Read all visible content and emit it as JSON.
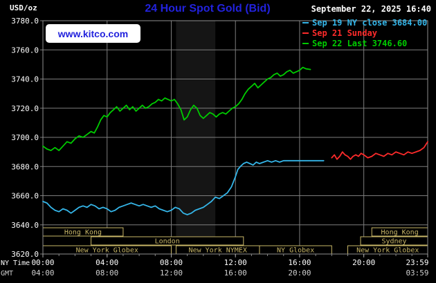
{
  "header": {
    "unit_label": "USD/oz",
    "title": "24 Hour Spot Gold (Bid)",
    "title_color": "#2222dd",
    "datetime": "September 22, 2025 16:40"
  },
  "watermark": {
    "text": "www.kitco.com",
    "color": "#2222dd"
  },
  "legend": {
    "items": [
      {
        "label": "Sep 19 NY close 3684.00",
        "color": "#35b6e9"
      },
      {
        "label": "Sep 21 Sunday",
        "color": "#ff2b2b"
      },
      {
        "label": "Sep 22 Last 3746.60",
        "color": "#00cc00"
      }
    ]
  },
  "chart_data": {
    "type": "line",
    "title": "24 Hour Spot Gold (Bid)",
    "xlabel": "NY Time (hours)",
    "ylabel": "USD/oz",
    "xlim": [
      0,
      23.983
    ],
    "ylim": [
      3620,
      3780
    ],
    "grid": true,
    "grid_color": "#7e7e7e",
    "border_color": "#909090",
    "axis_text_color": "#ffffff",
    "gmt_text_color": "#d0d0d0",
    "x_axis_rows": {
      "ny": "NY Time",
      "gmt": "GMT"
    },
    "y_ticks": [
      {
        "v": 3780,
        "label": "3780.0"
      },
      {
        "v": 3760,
        "label": "3760.0"
      },
      {
        "v": 3740,
        "label": "3740.0"
      },
      {
        "v": 3720,
        "label": "3720.0"
      },
      {
        "v": 3700,
        "label": "3700.0"
      },
      {
        "v": 3680,
        "label": "3680.0"
      },
      {
        "v": 3660,
        "label": "3660.0"
      },
      {
        "v": 3640,
        "label": "3640.0"
      },
      {
        "v": 3620,
        "label": "3620.0"
      }
    ],
    "x_ticks": [
      {
        "t": 0,
        "ny": "00:00",
        "gmt": "04:00"
      },
      {
        "t": 4,
        "ny": "04:00",
        "gmt": "08:00"
      },
      {
        "t": 8,
        "ny": "08:00",
        "gmt": "12:00"
      },
      {
        "t": 12,
        "ny": "12:00",
        "gmt": "16:00"
      },
      {
        "t": 16,
        "ny": "16:00",
        "gmt": "20:00"
      },
      {
        "t": 20,
        "ny": "20:00",
        "gmt": null
      },
      {
        "t": 23.983,
        "ny": "23:59",
        "gmt": "03:59"
      }
    ],
    "shaded_band": {
      "from_hour": 8.3,
      "to_hour": 10.75,
      "color": "#151515"
    },
    "session_color": "#c9b768",
    "session_rows": [
      [
        {
          "label": "Hong Kong",
          "from": 0,
          "to": 5.0
        },
        {
          "label": "Hong Kong",
          "from": 20.5,
          "to": 23.983
        }
      ],
      [
        {
          "label": "London",
          "from": 3.0,
          "to": 12.5
        },
        {
          "label": "Sydney",
          "from": 19.8,
          "to": 23.983
        }
      ],
      [
        {
          "label": "New York Globex",
          "from": 0,
          "to": 8.0
        },
        {
          "label": "New York NYMEX",
          "from": 8.3,
          "to": 13.5
        },
        {
          "label": "NY Globex",
          "from": 13.5,
          "to": 18.0
        },
        {
          "label": "New York Globex",
          "from": 19.0,
          "to": 23.983
        }
      ]
    ],
    "series": [
      {
        "id": "sep19",
        "name": "Sep 19 NY close 3684.00",
        "color": "#35b6e9",
        "points": [
          [
            0,
            3656
          ],
          [
            0.25,
            3655
          ],
          [
            0.5,
            3652
          ],
          [
            0.75,
            3650
          ],
          [
            1,
            3649
          ],
          [
            1.25,
            3651
          ],
          [
            1.5,
            3650
          ],
          [
            1.75,
            3648
          ],
          [
            2,
            3650
          ],
          [
            2.25,
            3652
          ],
          [
            2.5,
            3653
          ],
          [
            2.75,
            3652
          ],
          [
            3,
            3654
          ],
          [
            3.25,
            3653
          ],
          [
            3.5,
            3651
          ],
          [
            3.75,
            3652
          ],
          [
            4,
            3651
          ],
          [
            4.25,
            3649
          ],
          [
            4.5,
            3650
          ],
          [
            4.75,
            3652
          ],
          [
            5,
            3653
          ],
          [
            5.25,
            3654
          ],
          [
            5.5,
            3655
          ],
          [
            5.75,
            3654
          ],
          [
            6,
            3653
          ],
          [
            6.25,
            3654
          ],
          [
            6.5,
            3653
          ],
          [
            6.75,
            3652
          ],
          [
            7,
            3653
          ],
          [
            7.25,
            3651
          ],
          [
            7.5,
            3650
          ],
          [
            7.75,
            3649
          ],
          [
            8,
            3650
          ],
          [
            8.25,
            3652
          ],
          [
            8.5,
            3651
          ],
          [
            8.75,
            3648
          ],
          [
            9,
            3647
          ],
          [
            9.25,
            3648
          ],
          [
            9.5,
            3650
          ],
          [
            9.75,
            3651
          ],
          [
            10,
            3652
          ],
          [
            10.25,
            3654
          ],
          [
            10.5,
            3656
          ],
          [
            10.75,
            3659
          ],
          [
            11,
            3658
          ],
          [
            11.25,
            3660
          ],
          [
            11.5,
            3662
          ],
          [
            11.75,
            3666
          ],
          [
            12,
            3673
          ],
          [
            12.15,
            3678
          ],
          [
            12.3,
            3680
          ],
          [
            12.5,
            3682
          ],
          [
            12.7,
            3683
          ],
          [
            12.9,
            3682
          ],
          [
            13.1,
            3681
          ],
          [
            13.3,
            3683
          ],
          [
            13.5,
            3682
          ],
          [
            13.75,
            3683
          ],
          [
            14,
            3684
          ],
          [
            14.25,
            3683
          ],
          [
            14.5,
            3684
          ],
          [
            14.75,
            3683
          ],
          [
            15,
            3684
          ],
          [
            15.5,
            3684
          ],
          [
            16,
            3684
          ],
          [
            16.5,
            3684
          ],
          [
            17,
            3684
          ],
          [
            17.5,
            3684
          ]
        ]
      },
      {
        "id": "sep21",
        "name": "Sep 21 Sunday",
        "color": "#ff2b2b",
        "points": [
          [
            18,
            3686
          ],
          [
            18.17,
            3688
          ],
          [
            18.33,
            3685
          ],
          [
            18.5,
            3687
          ],
          [
            18.67,
            3690
          ],
          [
            18.83,
            3688
          ],
          [
            19,
            3687
          ],
          [
            19.17,
            3685
          ],
          [
            19.33,
            3687
          ],
          [
            19.5,
            3688
          ],
          [
            19.67,
            3687
          ],
          [
            19.83,
            3689
          ],
          [
            20,
            3688
          ],
          [
            20.25,
            3686
          ],
          [
            20.5,
            3687
          ],
          [
            20.75,
            3689
          ],
          [
            21,
            3688
          ],
          [
            21.25,
            3687
          ],
          [
            21.5,
            3689
          ],
          [
            21.75,
            3688
          ],
          [
            22,
            3690
          ],
          [
            22.25,
            3689
          ],
          [
            22.5,
            3688
          ],
          [
            22.75,
            3690
          ],
          [
            23,
            3689
          ],
          [
            23.25,
            3690
          ],
          [
            23.5,
            3691
          ],
          [
            23.75,
            3693
          ],
          [
            23.983,
            3697
          ]
        ]
      },
      {
        "id": "sep22",
        "name": "Sep 22 Last 3746.60",
        "color": "#00cc00",
        "points": [
          [
            0,
            3694
          ],
          [
            0.25,
            3692
          ],
          [
            0.5,
            3691
          ],
          [
            0.75,
            3693
          ],
          [
            1,
            3691
          ],
          [
            1.25,
            3694
          ],
          [
            1.5,
            3697
          ],
          [
            1.75,
            3696
          ],
          [
            2,
            3699
          ],
          [
            2.25,
            3701
          ],
          [
            2.5,
            3700
          ],
          [
            2.75,
            3702
          ],
          [
            3,
            3704
          ],
          [
            3.2,
            3703
          ],
          [
            3.4,
            3707
          ],
          [
            3.6,
            3712
          ],
          [
            3.8,
            3715
          ],
          [
            4,
            3714
          ],
          [
            4.2,
            3717
          ],
          [
            4.4,
            3719
          ],
          [
            4.6,
            3721
          ],
          [
            4.8,
            3718
          ],
          [
            5,
            3720
          ],
          [
            5.2,
            3722
          ],
          [
            5.4,
            3719
          ],
          [
            5.6,
            3721
          ],
          [
            5.8,
            3718
          ],
          [
            6,
            3720
          ],
          [
            6.2,
            3722
          ],
          [
            6.4,
            3720
          ],
          [
            6.6,
            3721
          ],
          [
            6.8,
            3723
          ],
          [
            7,
            3724
          ],
          [
            7.2,
            3726
          ],
          [
            7.4,
            3725
          ],
          [
            7.6,
            3727
          ],
          [
            7.8,
            3726
          ],
          [
            8,
            3725
          ],
          [
            8.2,
            3726
          ],
          [
            8.4,
            3723
          ],
          [
            8.6,
            3719
          ],
          [
            8.8,
            3712
          ],
          [
            9,
            3714
          ],
          [
            9.2,
            3719
          ],
          [
            9.4,
            3722
          ],
          [
            9.6,
            3720
          ],
          [
            9.8,
            3715
          ],
          [
            10,
            3713
          ],
          [
            10.2,
            3715
          ],
          [
            10.4,
            3717
          ],
          [
            10.6,
            3716
          ],
          [
            10.8,
            3714
          ],
          [
            11,
            3716
          ],
          [
            11.2,
            3717
          ],
          [
            11.4,
            3716
          ],
          [
            11.6,
            3718
          ],
          [
            11.8,
            3720
          ],
          [
            12,
            3721
          ],
          [
            12.2,
            3723
          ],
          [
            12.4,
            3726
          ],
          [
            12.6,
            3730
          ],
          [
            12.8,
            3733
          ],
          [
            13,
            3735
          ],
          [
            13.2,
            3737
          ],
          [
            13.4,
            3734
          ],
          [
            13.6,
            3736
          ],
          [
            13.8,
            3738
          ],
          [
            14,
            3740
          ],
          [
            14.2,
            3741
          ],
          [
            14.4,
            3743
          ],
          [
            14.6,
            3744
          ],
          [
            14.8,
            3742
          ],
          [
            15,
            3743
          ],
          [
            15.2,
            3745
          ],
          [
            15.4,
            3746
          ],
          [
            15.6,
            3744
          ],
          [
            15.8,
            3745
          ],
          [
            16,
            3746
          ],
          [
            16.2,
            3748
          ],
          [
            16.4,
            3747
          ],
          [
            16.67,
            3746.6
          ]
        ]
      }
    ]
  }
}
